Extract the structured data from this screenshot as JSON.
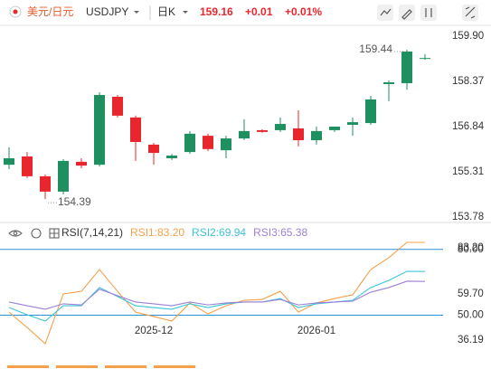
{
  "header": {
    "pair": "美元/日元",
    "symbol": "USDJPY",
    "period": "日K",
    "price": "159.16",
    "change": "+0.01",
    "change_pct": "+0.01%"
  },
  "chart_data": [
    {
      "type": "candlestick",
      "open": [
        155.55,
        155.83,
        155.16,
        154.64,
        155.65,
        155.55,
        157.85,
        157.15,
        156.23,
        155.77,
        155.98,
        156.53,
        156.04,
        156.44,
        156.72,
        156.72,
        156.78,
        156.38,
        156.72,
        156.9,
        156.96,
        158.28,
        158.31,
        159.15
      ],
      "high": [
        156.14,
        155.98,
        155.22,
        155.74,
        155.77,
        158.0,
        157.91,
        157.21,
        156.29,
        155.92,
        156.69,
        156.6,
        156.53,
        157.09,
        156.75,
        157.15,
        157.39,
        156.84,
        156.78,
        157.15,
        157.88,
        158.4,
        159.44,
        159.29
      ],
      "low": [
        155.4,
        155.1,
        154.39,
        154.55,
        155.43,
        155.49,
        157.15,
        155.68,
        155.55,
        155.71,
        155.92,
        156.01,
        155.77,
        156.38,
        156.63,
        156.66,
        156.17,
        156.23,
        156.66,
        156.53,
        156.9,
        157.7,
        158.09,
        159.1
      ],
      "close": [
        155.77,
        155.16,
        154.64,
        155.68,
        155.52,
        157.91,
        157.21,
        156.32,
        155.95,
        155.86,
        156.6,
        156.08,
        156.44,
        156.69,
        156.66,
        156.93,
        156.38,
        156.69,
        156.84,
        156.99,
        157.76,
        158.34,
        159.38,
        159.16
      ],
      "up_color": "#1e8f5e",
      "down_color": "#e8262d",
      "ylim": [
        153.78,
        159.9
      ],
      "yticks": [
        153.78,
        155.31,
        156.84,
        158.37,
        {
          "value": 159.9,
          "label": "159.90"
        }
      ]
    },
    {
      "type": "line",
      "title": "RSI(7,14,21)",
      "categories": [
        null,
        null,
        null,
        null,
        null,
        null,
        null,
        null,
        "2025-12",
        null,
        null,
        null,
        null,
        null,
        null,
        null,
        null,
        "2026-01",
        null,
        null,
        null,
        null,
        null,
        null
      ],
      "series": [
        {
          "name": "RSI1:83.20",
          "color": "#f5a04a",
          "values": [
            51.4,
            44.4,
            37.0,
            59.7,
            60.9,
            70.8,
            60.9,
            51.4,
            49.4,
            47.3,
            55.6,
            50.6,
            54.3,
            56.8,
            57.2,
            60.9,
            51.4,
            55.6,
            57.6,
            59.3,
            70.8,
            76.2,
            83.2,
            83.2
          ]
        },
        {
          "name": "RSI2:69.94",
          "color": "#3cc4d8",
          "values": [
            53.5,
            50.2,
            47.3,
            54.3,
            54.3,
            62.6,
            58.5,
            54.3,
            53.5,
            52.7,
            55.2,
            53.5,
            55.2,
            56.0,
            56.0,
            57.6,
            53.5,
            55.2,
            56.0,
            56.8,
            62.6,
            65.9,
            70.0,
            69.94
          ]
        },
        {
          "name": "RSI3:65.38",
          "color": "#9d7fd6",
          "values": [
            56.0,
            54.3,
            52.7,
            55.2,
            54.7,
            61.8,
            58.9,
            56.0,
            55.2,
            54.3,
            56.0,
            54.7,
            55.6,
            56.0,
            56.0,
            57.2,
            54.7,
            55.6,
            56.0,
            56.4,
            60.5,
            62.6,
            65.5,
            65.38
          ]
        }
      ],
      "ylim": [
        36.19,
        83.2
      ],
      "yticks": [
        36.19,
        {
          "value": 59.7,
          "label": "59.70"
        },
        {
          "value": 83.2,
          "label": "83.20"
        }
      ],
      "reference_lines": [
        {
          "value": 80,
          "label": "80.00"
        },
        {
          "value": 50,
          "label": "50.00"
        }
      ],
      "reference_color": "#2a8fd6"
    }
  ]
}
